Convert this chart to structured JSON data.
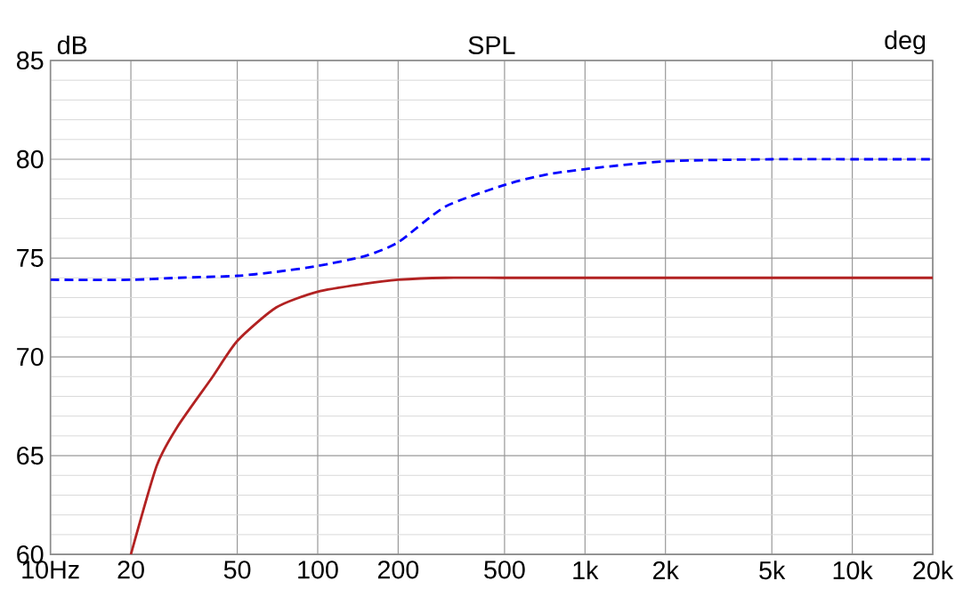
{
  "chart_data": {
    "type": "line",
    "title": "SPL",
    "ylabel": "dB",
    "y2label": "deg",
    "log": "x",
    "grid": true,
    "xlim": [
      10,
      20000
    ],
    "ylim": [
      60,
      85
    ],
    "xticks": [
      {
        "value": 10,
        "label": "10Hz"
      },
      20,
      50,
      100,
      200,
      500,
      {
        "value": 1000,
        "label": "1k"
      },
      {
        "value": 2000,
        "label": "2k"
      },
      {
        "value": 5000,
        "label": "5k"
      },
      {
        "value": 10000,
        "label": "10k"
      },
      {
        "value": 20000,
        "label": "20k"
      }
    ],
    "yticks": [
      60,
      65,
      70,
      75,
      80,
      85
    ],
    "series": [
      {
        "color": "#b22222",
        "line_style": "solid",
        "x": [
          20,
          25,
          30,
          40,
          50,
          70,
          100,
          150,
          200,
          300,
          500,
          1000,
          2000,
          5000,
          10000,
          20000
        ],
        "values": [
          60,
          64.5,
          66.5,
          68.9,
          70.8,
          72.5,
          73.3,
          73.7,
          73.9,
          74,
          74,
          74,
          74,
          74,
          74,
          74
        ]
      },
      {
        "color": "#0000ff",
        "line_style": "dashed",
        "x": [
          10,
          20,
          30,
          50,
          70,
          100,
          150,
          200,
          300,
          500,
          700,
          1000,
          2000,
          5000,
          10000,
          20000
        ],
        "values": [
          73.9,
          73.9,
          74,
          74.1,
          74.3,
          74.6,
          75.1,
          75.8,
          77.6,
          78.7,
          79.2,
          79.5,
          79.9,
          80,
          80,
          80
        ]
      }
    ]
  }
}
